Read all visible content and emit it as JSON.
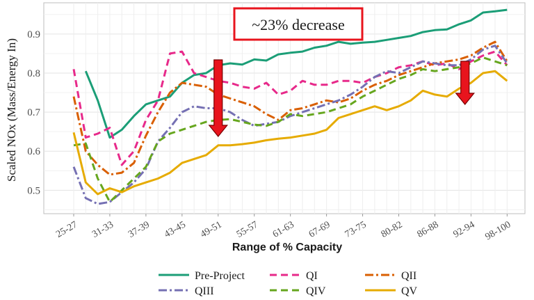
{
  "chart_data": {
    "type": "line",
    "title": "",
    "xlabel": "Range of % Capacity",
    "ylabel": "Scaled NOx (Mass/Energy In)",
    "ylim": [
      0.44,
      0.98
    ],
    "yticks": [
      "0.5",
      "0.6",
      "0.7",
      "0.8",
      "0.9"
    ],
    "ytick_values": [
      0.5,
      0.6,
      0.7,
      0.8,
      0.9
    ],
    "x_tick_labels": [
      "25-27",
      "31-33",
      "37-39",
      "43-45",
      "49-51",
      "55-57",
      "61-63",
      "67-69",
      "73-75",
      "80-82",
      "86-88",
      "92-94",
      "98-100"
    ],
    "x": [
      26,
      28,
      30,
      32,
      34,
      36,
      38,
      40,
      42,
      44,
      46,
      48,
      50,
      52,
      54,
      56,
      58,
      60,
      62,
      64,
      66,
      68,
      70,
      72,
      74,
      76,
      78,
      80,
      82,
      84,
      86,
      88,
      90,
      92,
      94,
      96,
      98
    ],
    "grid": true,
    "legend_position": "bottom",
    "annotation": "~23% decrease",
    "arrows_at_x": [
      50,
      91
    ],
    "series": [
      {
        "name": "Pre-Project",
        "color": "#1b9e77",
        "dash": "",
        "values": [
          null,
          0.805,
          0.73,
          0.635,
          0.655,
          0.69,
          0.72,
          0.73,
          0.74,
          0.775,
          0.795,
          0.8,
          0.82,
          0.825,
          0.822,
          0.835,
          0.832,
          0.848,
          0.852,
          0.855,
          0.865,
          0.87,
          0.88,
          0.875,
          0.878,
          0.88,
          0.885,
          0.89,
          0.895,
          0.905,
          0.91,
          0.912,
          0.925,
          0.935,
          0.955,
          0.958,
          0.962
        ]
      },
      {
        "name": "QI",
        "color": "#e7298a",
        "dash": "10,6",
        "values": [
          0.81,
          0.635,
          0.645,
          0.66,
          0.565,
          0.6,
          0.68,
          0.73,
          0.85,
          0.855,
          0.8,
          0.79,
          0.78,
          0.775,
          0.765,
          0.76,
          0.775,
          0.745,
          0.755,
          0.78,
          0.77,
          0.77,
          0.78,
          0.78,
          0.775,
          0.79,
          0.8,
          0.815,
          0.82,
          0.83,
          0.82,
          0.825,
          0.81,
          0.83,
          0.845,
          0.855,
          0.82
        ]
      },
      {
        "name": "QII",
        "color": "#d95f02",
        "dash": "12,4,3,4",
        "values": [
          0.74,
          0.6,
          0.565,
          0.54,
          0.545,
          0.57,
          0.64,
          0.7,
          0.75,
          0.775,
          0.77,
          0.765,
          0.745,
          0.735,
          0.725,
          0.715,
          0.695,
          0.68,
          0.705,
          0.71,
          0.72,
          0.73,
          0.725,
          0.735,
          0.755,
          0.77,
          0.78,
          0.795,
          0.805,
          0.815,
          0.825,
          0.83,
          0.835,
          0.845,
          0.865,
          0.88,
          0.83
        ]
      },
      {
        "name": "QIII",
        "color": "#7570b3",
        "dash": "12,4,3,4",
        "values": [
          0.56,
          0.48,
          0.465,
          0.47,
          0.495,
          0.52,
          0.555,
          0.625,
          0.66,
          0.7,
          0.715,
          0.71,
          0.71,
          0.7,
          0.68,
          0.665,
          0.67,
          0.675,
          0.69,
          0.7,
          0.71,
          0.72,
          0.73,
          0.745,
          0.765,
          0.79,
          0.805,
          0.8,
          0.815,
          0.83,
          0.825,
          0.82,
          0.82,
          0.835,
          0.86,
          0.87,
          0.825
        ]
      },
      {
        "name": "QIV",
        "color": "#66a61e",
        "dash": "10,6",
        "values": [
          0.615,
          0.62,
          0.53,
          0.47,
          0.5,
          0.53,
          0.56,
          0.625,
          0.645,
          0.655,
          0.665,
          0.675,
          0.68,
          0.682,
          0.675,
          0.668,
          0.665,
          0.675,
          0.695,
          0.69,
          0.695,
          0.7,
          0.71,
          0.72,
          0.74,
          0.755,
          0.77,
          0.785,
          0.795,
          0.81,
          0.805,
          0.81,
          0.815,
          0.825,
          0.84,
          0.83,
          0.82
        ]
      },
      {
        "name": "QV",
        "color": "#e6ab02",
        "dash": "",
        "values": [
          0.648,
          0.52,
          0.49,
          0.505,
          0.495,
          0.51,
          0.52,
          0.53,
          0.545,
          0.57,
          0.58,
          0.59,
          0.615,
          0.615,
          0.618,
          0.622,
          0.628,
          0.632,
          0.635,
          0.64,
          0.645,
          0.655,
          0.685,
          0.695,
          0.705,
          0.715,
          0.705,
          0.715,
          0.73,
          0.755,
          0.745,
          0.74,
          0.76,
          0.775,
          0.8,
          0.805,
          0.78
        ]
      }
    ]
  }
}
